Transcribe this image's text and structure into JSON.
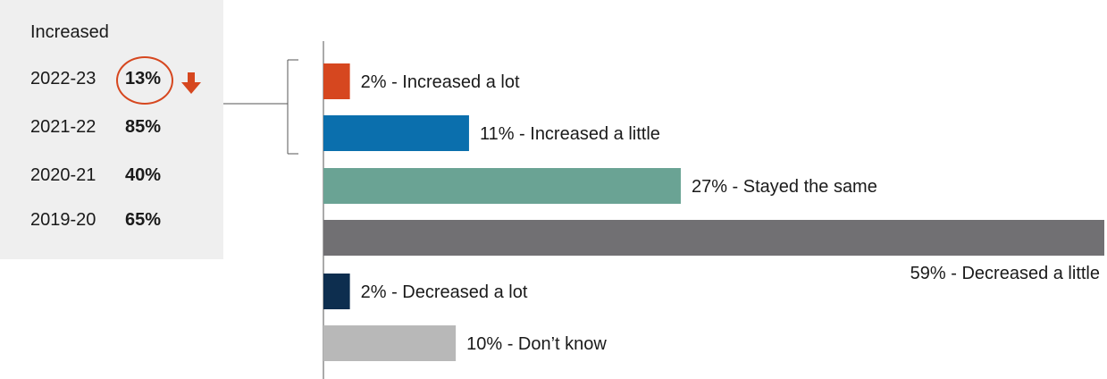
{
  "summary_panel": {
    "heading": "Increased",
    "rows": [
      {
        "year": "2022-23",
        "value": "13%"
      },
      {
        "year": "2021-22",
        "value": "85%"
      },
      {
        "year": "2020-21",
        "value": "40%"
      },
      {
        "year": "2019-20",
        "value": "65%"
      }
    ],
    "highlight_color": "#d6471f",
    "arrow_icon": "arrow-down-icon"
  },
  "chart_data": {
    "type": "bar",
    "orientation": "horizontal",
    "xlim": [
      0,
      59
    ],
    "grid": false,
    "categories": [
      "Increased a lot",
      "Increased a little",
      "Stayed the same",
      "Decreased a little",
      "Decreased a lot",
      "Don’t know"
    ],
    "values": [
      2,
      11,
      27,
      59,
      2,
      10
    ],
    "labels": [
      "2% - Increased a lot",
      "11% - Increased a little",
      "27% - Stayed the same",
      "59% - Decreased a little",
      "2% - Decreased a lot",
      "10% - Don’t know"
    ],
    "colors": [
      "#d6471f",
      "#0b6fad",
      "#6aa394",
      "#717073",
      "#0d2e4f",
      "#b8b8b8"
    ]
  }
}
